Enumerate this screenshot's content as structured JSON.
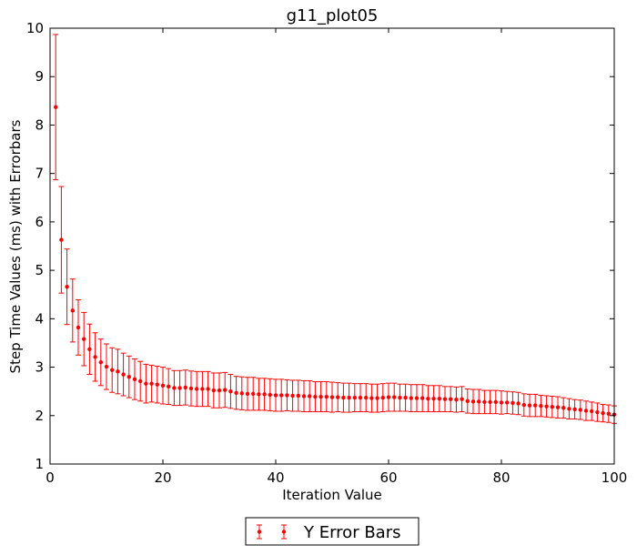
{
  "chart_data": {
    "type": "scatter",
    "title": "g11_plot05",
    "xlabel": "Iteration Value",
    "ylabel": "Step Time Values (ms) with Errorbars",
    "xlim": [
      0,
      100
    ],
    "ylim": [
      1,
      10
    ],
    "xticks": [
      "0",
      "20",
      "40",
      "60",
      "80",
      "100"
    ],
    "yticks": [
      "1",
      "2",
      "3",
      "4",
      "5",
      "6",
      "7",
      "8",
      "9",
      "10"
    ],
    "grid": false,
    "legend_position": "bottom-center, below axes",
    "series": [
      {
        "name": "Y Error Bars",
        "color": "#ff0000",
        "marker": "dot",
        "x": [
          1,
          2,
          3,
          4,
          5,
          6,
          7,
          8,
          9,
          10,
          11,
          12,
          13,
          14,
          15,
          16,
          17,
          18,
          19,
          20,
          21,
          22,
          23,
          24,
          25,
          26,
          27,
          28,
          29,
          30,
          31,
          32,
          33,
          34,
          35,
          36,
          37,
          38,
          39,
          40,
          41,
          42,
          43,
          44,
          45,
          46,
          47,
          48,
          49,
          50,
          51,
          52,
          53,
          54,
          55,
          56,
          57,
          58,
          59,
          60,
          61,
          62,
          63,
          64,
          65,
          66,
          67,
          68,
          69,
          70,
          71,
          72,
          73,
          74,
          75,
          76,
          77,
          78,
          79,
          80,
          81,
          82,
          83,
          84,
          85,
          86,
          87,
          88,
          89,
          90,
          91,
          92,
          93,
          94,
          95,
          96,
          97,
          98,
          99,
          100
        ],
        "y": [
          8.37,
          5.63,
          4.66,
          4.17,
          3.82,
          3.58,
          3.37,
          3.21,
          3.1,
          3.01,
          2.94,
          2.91,
          2.85,
          2.8,
          2.75,
          2.71,
          2.66,
          2.66,
          2.64,
          2.62,
          2.6,
          2.57,
          2.57,
          2.58,
          2.56,
          2.55,
          2.55,
          2.55,
          2.52,
          2.52,
          2.53,
          2.5,
          2.47,
          2.46,
          2.45,
          2.45,
          2.44,
          2.44,
          2.43,
          2.42,
          2.42,
          2.42,
          2.41,
          2.41,
          2.4,
          2.4,
          2.39,
          2.39,
          2.39,
          2.38,
          2.38,
          2.37,
          2.37,
          2.37,
          2.37,
          2.37,
          2.36,
          2.36,
          2.37,
          2.38,
          2.38,
          2.37,
          2.37,
          2.36,
          2.36,
          2.36,
          2.35,
          2.35,
          2.35,
          2.34,
          2.34,
          2.33,
          2.34,
          2.3,
          2.29,
          2.29,
          2.28,
          2.28,
          2.28,
          2.27,
          2.27,
          2.26,
          2.25,
          2.22,
          2.21,
          2.21,
          2.2,
          2.19,
          2.18,
          2.17,
          2.16,
          2.14,
          2.13,
          2.12,
          2.1,
          2.09,
          2.07,
          2.05,
          2.04,
          2.02
        ],
        "err": [
          1.5,
          1.1,
          0.78,
          0.65,
          0.57,
          0.55,
          0.52,
          0.5,
          0.48,
          0.47,
          0.46,
          0.46,
          0.44,
          0.43,
          0.42,
          0.41,
          0.4,
          0.38,
          0.38,
          0.38,
          0.37,
          0.36,
          0.36,
          0.36,
          0.36,
          0.36,
          0.36,
          0.36,
          0.36,
          0.36,
          0.36,
          0.35,
          0.34,
          0.34,
          0.34,
          0.34,
          0.33,
          0.33,
          0.33,
          0.33,
          0.33,
          0.32,
          0.32,
          0.32,
          0.32,
          0.32,
          0.31,
          0.31,
          0.31,
          0.31,
          0.3,
          0.3,
          0.3,
          0.29,
          0.29,
          0.29,
          0.29,
          0.29,
          0.29,
          0.29,
          0.29,
          0.28,
          0.28,
          0.28,
          0.28,
          0.28,
          0.27,
          0.27,
          0.27,
          0.26,
          0.26,
          0.26,
          0.26,
          0.25,
          0.25,
          0.25,
          0.24,
          0.24,
          0.24,
          0.24,
          0.23,
          0.23,
          0.23,
          0.23,
          0.23,
          0.23,
          0.22,
          0.22,
          0.22,
          0.22,
          0.21,
          0.21,
          0.2,
          0.2,
          0.2,
          0.19,
          0.19,
          0.18,
          0.18,
          0.18
        ]
      }
    ]
  }
}
